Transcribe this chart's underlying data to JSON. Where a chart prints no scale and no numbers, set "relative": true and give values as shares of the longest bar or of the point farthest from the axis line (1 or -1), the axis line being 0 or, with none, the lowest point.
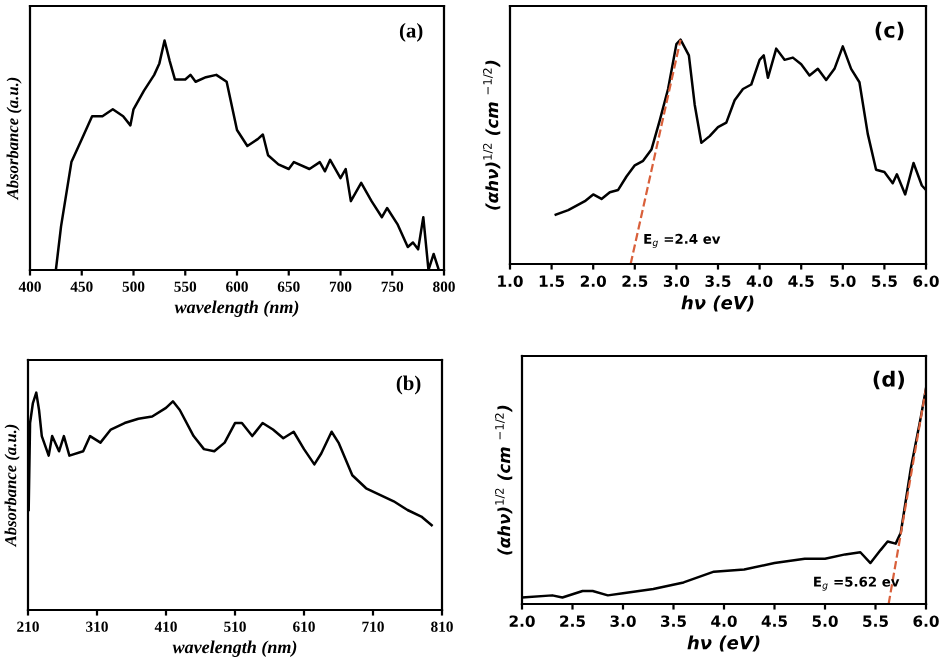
{
  "chart_data": [
    {
      "type": "line",
      "relative": true,
      "xlabel": "wavelength (nm)",
      "ylabel": "Absorbance (a.u.)",
      "annotations": [
        "(a)"
      ],
      "xlim": [
        400,
        800
      ],
      "xticks": [
        400,
        450,
        500,
        550,
        600,
        650,
        700,
        750,
        800
      ],
      "grid": false,
      "legend": false,
      "series": [
        {
          "color": "#000000",
          "line_style": "solid",
          "x": [
            425,
            430,
            440,
            450,
            460,
            470,
            480,
            490,
            497,
            500,
            510,
            520,
            525,
            530,
            535,
            540,
            550,
            555,
            560,
            570,
            580,
            590,
            600,
            610,
            620,
            625,
            630,
            640,
            650,
            655,
            670,
            680,
            685,
            690,
            700,
            705,
            710,
            720,
            730,
            740,
            745,
            755,
            765,
            770,
            775,
            780,
            785,
            790,
            795
          ],
          "values": [
            0,
            0.19,
            0.47,
            0.57,
            0.67,
            0.67,
            0.7,
            0.67,
            0.63,
            0.7,
            0.78,
            0.85,
            0.9,
            1.0,
            0.91,
            0.83,
            0.83,
            0.85,
            0.82,
            0.84,
            0.85,
            0.82,
            0.61,
            0.54,
            0.57,
            0.59,
            0.5,
            0.46,
            0.44,
            0.47,
            0.44,
            0.47,
            0.43,
            0.48,
            0.4,
            0.44,
            0.3,
            0.38,
            0.3,
            0.23,
            0.27,
            0.2,
            0.1,
            0.12,
            0.09,
            0.23,
            0,
            0.07,
            0
          ]
        }
      ]
    },
    {
      "type": "line",
      "relative": true,
      "xlabel": "hν (eV)",
      "ylabel": "(αhν)$^{1/2}$ (cm $^{−1/2}$)",
      "annotations": [
        "(c)",
        {
          "text": "E$_{g}$ =2.4 ev",
          "x": 2.6,
          "y": 0.09
        }
      ],
      "xlim": [
        1.0,
        6.0
      ],
      "xticks": [
        {
          "value": 1.0,
          "label": "1.0"
        },
        1.5,
        {
          "value": 2.0,
          "label": "2.0"
        },
        2.5,
        {
          "value": 3.0,
          "label": "3.0"
        },
        3.5,
        {
          "value": 4.0,
          "label": "4.0"
        },
        4.5,
        {
          "value": 5.0,
          "label": "5.0"
        },
        5.5,
        {
          "value": 6.0,
          "label": "6.0"
        }
      ],
      "grid": false,
      "legend": false,
      "series": [
        {
          "color": "#000000",
          "line_style": "solid",
          "x": [
            1.55,
            1.7,
            1.9,
            2.0,
            2.1,
            2.2,
            2.3,
            2.4,
            2.5,
            2.6,
            2.7,
            2.8,
            2.9,
            3.0,
            3.05,
            3.15,
            3.22,
            3.3,
            3.4,
            3.5,
            3.6,
            3.7,
            3.8,
            3.9,
            4.0,
            4.05,
            4.1,
            4.2,
            4.3,
            4.4,
            4.5,
            4.6,
            4.7,
            4.8,
            4.9,
            5.0,
            5.1,
            5.2,
            5.3,
            5.4,
            5.5,
            5.6,
            5.65,
            5.75,
            5.85,
            5.95,
            6.0
          ],
          "values": [
            0.22,
            0.24,
            0.28,
            0.31,
            0.29,
            0.32,
            0.33,
            0.39,
            0.44,
            0.46,
            0.51,
            0.64,
            0.78,
            0.98,
            1.0,
            0.93,
            0.71,
            0.54,
            0.57,
            0.61,
            0.63,
            0.73,
            0.78,
            0.8,
            0.91,
            0.93,
            0.83,
            0.96,
            0.91,
            0.92,
            0.89,
            0.84,
            0.87,
            0.82,
            0.87,
            0.97,
            0.87,
            0.81,
            0.58,
            0.42,
            0.41,
            0.36,
            0.4,
            0.31,
            0.45,
            0.35,
            0.33
          ]
        },
        {
          "color": "#d9603b",
          "line_style": "dashed",
          "x": [
            2.45,
            3.05
          ],
          "values": [
            0,
            1.0
          ]
        }
      ]
    },
    {
      "type": "line",
      "relative": true,
      "xlabel": "wavelength (nm)",
      "ylabel": "Absorbance (a.u.)",
      "annotations": [
        "(b)"
      ],
      "xlim": [
        210,
        810
      ],
      "xticks": [
        210,
        310,
        410,
        510,
        610,
        710,
        810
      ],
      "grid": false,
      "legend": false,
      "series": [
        {
          "color": "#000000",
          "line_style": "solid",
          "x": [
            211,
            213,
            217,
            222,
            226,
            230,
            240,
            245,
            255,
            262,
            270,
            290,
            300,
            315,
            330,
            350,
            370,
            390,
            410,
            420,
            430,
            450,
            465,
            480,
            495,
            510,
            520,
            535,
            550,
            565,
            580,
            595,
            610,
            625,
            635,
            650,
            660,
            680,
            700,
            720,
            740,
            760,
            780,
            795
          ],
          "values": [
            0.46,
            0.86,
            0.95,
            1.0,
            0.92,
            0.8,
            0.71,
            0.8,
            0.73,
            0.8,
            0.71,
            0.73,
            0.8,
            0.77,
            0.83,
            0.86,
            0.88,
            0.89,
            0.93,
            0.96,
            0.92,
            0.8,
            0.74,
            0.73,
            0.77,
            0.86,
            0.86,
            0.8,
            0.86,
            0.83,
            0.79,
            0.82,
            0.74,
            0.67,
            0.72,
            0.82,
            0.77,
            0.62,
            0.56,
            0.53,
            0.5,
            0.46,
            0.43,
            0.39
          ]
        }
      ]
    },
    {
      "type": "line",
      "relative": true,
      "xlabel": "hν (eV)",
      "ylabel": "(αhν)$^{1/2}$ (cm $^{−1/2}$)",
      "annotations": [
        "(d)",
        "E$_{g}$ =5.62 ev"
      ],
      "xlim": [
        2.0,
        6.0
      ],
      "xticks": [
        {
          "value": 2.0,
          "label": "2.0"
        },
        2.5,
        {
          "value": 3.0,
          "label": "3.0"
        },
        3.5,
        {
          "value": 4.0,
          "label": "4.0"
        },
        4.5,
        {
          "value": 5.0,
          "label": "5.0"
        },
        5.5,
        {
          "value": 6.0,
          "label": "6.0"
        }
      ],
      "grid": false,
      "legend": false,
      "series": [
        {
          "color": "#000000",
          "line_style": "solid",
          "x": [
            2.0,
            2.3,
            2.4,
            2.6,
            2.7,
            2.85,
            3.0,
            3.3,
            3.6,
            3.9,
            4.2,
            4.5,
            4.8,
            5.0,
            5.2,
            5.35,
            5.45,
            5.55,
            5.62,
            5.7,
            5.75,
            5.85,
            5.95,
            6.0
          ],
          "values": [
            0.03,
            0.04,
            0.03,
            0.06,
            0.06,
            0.04,
            0.05,
            0.07,
            0.1,
            0.15,
            0.16,
            0.19,
            0.21,
            0.21,
            0.23,
            0.24,
            0.19,
            0.25,
            0.29,
            0.28,
            0.33,
            0.63,
            0.87,
            1.0
          ]
        },
        {
          "color": "#d9603b",
          "line_style": "dashed",
          "x": [
            5.63,
            6.0
          ],
          "values": [
            0,
            1.0
          ]
        }
      ]
    }
  ]
}
